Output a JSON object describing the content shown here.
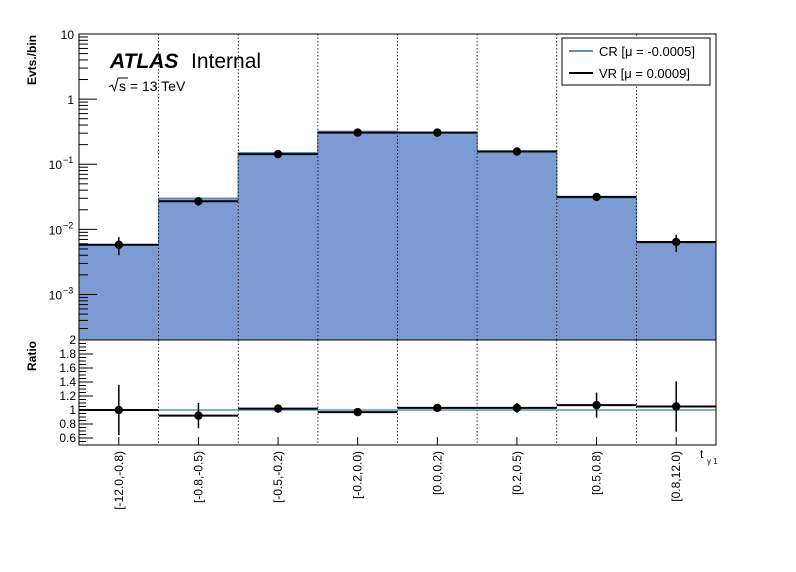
{
  "chart_data": [
    {
      "type": "bar",
      "panel": "main",
      "ylabel": "Evts./bin",
      "yscale": "log",
      "ylim": [
        0.0002,
        10
      ],
      "yticks": [
        {
          "v": 0.001,
          "base": "10",
          "exp": "−3"
        },
        {
          "v": 0.01,
          "base": "10",
          "exp": "−2"
        },
        {
          "v": 0.1,
          "base": "10",
          "exp": "−1"
        },
        {
          "v": 1,
          "base": "1",
          "exp": ""
        },
        {
          "v": 10,
          "base": "10",
          "exp": ""
        }
      ],
      "categories": [
        "[-12.0,-0.8)",
        "[-0.8,-0.5)",
        "[-0.5,-0.2)",
        "[-0.2,0.0)",
        "[0.0,0.2)",
        "[0.2,0.5)",
        "[0.5,0.8)",
        "[0.8,12.0)"
      ],
      "series": [
        {
          "name": "CR [μ = -0.0005]",
          "style": "filled-hist",
          "color": "#7b9bd2",
          "line": "#5f8fbf",
          "values": [
            0.0058,
            0.03,
            0.15,
            0.32,
            0.31,
            0.16,
            0.03,
            0.0062
          ]
        },
        {
          "name": "VR [μ = 0.0009]",
          "style": "hist-line-with-points",
          "color": "#000000",
          "values": [
            0.0058,
            0.027,
            0.143,
            0.306,
            0.306,
            0.157,
            0.0315,
            0.0064
          ],
          "errors": [
            0.0018,
            0.004,
            0.012,
            0.015,
            0.015,
            0.012,
            0.004,
            0.0019
          ]
        }
      ],
      "legend": {
        "position": "top-right"
      },
      "annotations": {
        "atlas": "ATLAS",
        "status": "Internal",
        "energy": "s = 13 TeV"
      }
    },
    {
      "type": "line",
      "panel": "ratio",
      "ylabel": "Ratio",
      "xlabel": "t",
      "xlabel_sub": "γ 1",
      "ylim": [
        0.5,
        2.0
      ],
      "yticks": [
        "0.6",
        "0.8",
        "1",
        "1.2",
        "1.4",
        "1.6",
        "1.8",
        "2"
      ],
      "reference": 1.0,
      "values": [
        1.0,
        0.92,
        1.02,
        0.97,
        1.03,
        1.03,
        1.07,
        1.05
      ],
      "errors": [
        0.36,
        0.18,
        0.06,
        0.05,
        0.05,
        0.07,
        0.18,
        0.36
      ]
    }
  ]
}
